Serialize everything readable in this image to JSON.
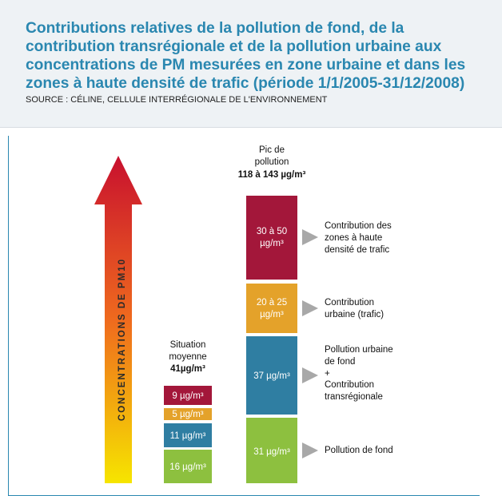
{
  "header": {
    "title": "Contributions relatives de la pollution de fond, de la contribution transrégionale et de la pollution urbaine aux concentrations de PM mesurées en zone urbaine et dans les zones à haute densité de trafic (période 1/1/2005-31/12/2008)",
    "source": "SOURCE : CÉLINE, CELLULE INTERRÉGIONALE DE L'ENVIRONNEMENT"
  },
  "axis_label": "CONCENTRATIONS DE PM10",
  "average": {
    "title": [
      "Situation",
      "moyenne",
      "41µg/m³"
    ],
    "segments": [
      "16 µg/m³",
      "11 µg/m³",
      "5 µg/m³",
      "9 µg/m³"
    ]
  },
  "peak": {
    "title": [
      "Pic de",
      "pollution",
      "118 à 143 µg/m³"
    ],
    "segments": [
      {
        "label": [
          "31 µg/m³"
        ],
        "description": [
          "Pollution de fond"
        ]
      },
      {
        "label": [
          "37 µg/m³"
        ],
        "description": [
          "Pollution urbaine",
          "de fond",
          "+",
          "Contribution",
          "transrégionale"
        ]
      },
      {
        "label": [
          "20 à 25",
          "µg/m³"
        ],
        "description": [
          "Contribution",
          "urbaine (trafic)"
        ]
      },
      {
        "label": [
          "30 à 50",
          "µg/m³"
        ],
        "description": [
          "Contribution des",
          "zones à haute",
          "densité de trafic"
        ]
      }
    ]
  }
}
